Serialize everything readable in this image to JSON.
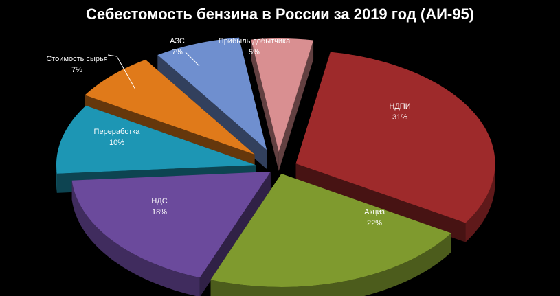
{
  "chart_data": {
    "type": "pie",
    "style": "3d-exploded",
    "title": "Себестомость бензина в России за 2019 год (АИ-95)",
    "slices": [
      {
        "label": "НДПИ",
        "pct_label": "31%",
        "value": 31,
        "color": "#9e2a2b"
      },
      {
        "label": "Акциз",
        "pct_label": "22%",
        "value": 22,
        "color": "#7f9a2e"
      },
      {
        "label": "НДС",
        "pct_label": "18%",
        "value": 18,
        "color": "#6b4a9c"
      },
      {
        "label": "Переработка",
        "pct_label": "10%",
        "value": 10,
        "color": "#1d96b4"
      },
      {
        "label": "Стоимость сырья",
        "pct_label": "7%",
        "value": 7,
        "color": "#e07a1a"
      },
      {
        "label": "АЗС",
        "pct_label": "7%",
        "value": 7,
        "color": "#6f8fcf"
      },
      {
        "label": "Прибыль добытчика",
        "pct_label": "5%",
        "value": 5,
        "color": "#d98f91"
      }
    ],
    "legend": "none",
    "background": "#000000"
  }
}
